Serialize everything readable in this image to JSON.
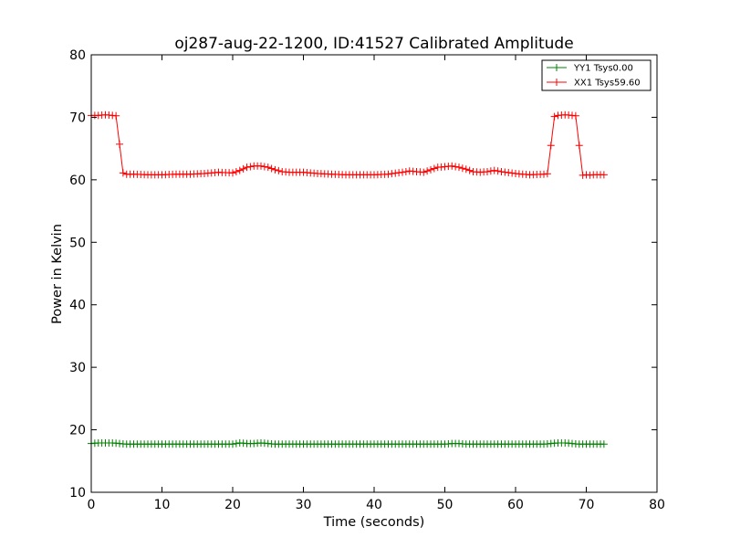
{
  "chart_data": {
    "type": "line",
    "title": "oj287-aug-22-1200, ID:41527 Calibrated Amplitude",
    "xlabel": "Time (seconds)",
    "ylabel": "Power in Kelvin",
    "xlim": [
      0,
      80
    ],
    "ylim": [
      10,
      80
    ],
    "x_ticks": [
      "0",
      "10",
      "20",
      "30",
      "40",
      "50",
      "60",
      "70",
      "80"
    ],
    "y_ticks": [
      "10",
      "20",
      "30",
      "40",
      "50",
      "60",
      "70",
      "80"
    ],
    "grid": false,
    "legend_position": "top-right",
    "marker": "+",
    "sample_interval": 0.5,
    "series": [
      {
        "name": "YY1 Tsys0.00",
        "color": "#008000",
        "x": [
          0,
          1,
          2,
          3,
          4,
          5,
          6,
          8,
          10,
          12,
          14,
          16,
          18,
          20,
          21,
          22,
          23,
          24,
          25,
          26,
          28,
          30,
          32,
          34,
          36,
          38,
          40,
          42,
          44,
          46,
          48,
          50,
          51,
          52,
          53,
          54,
          56,
          58,
          60,
          62,
          64,
          65,
          66,
          67,
          68,
          69,
          70,
          71,
          72,
          72.5
        ],
        "y": [
          17.8,
          17.9,
          17.9,
          17.9,
          17.8,
          17.7,
          17.7,
          17.7,
          17.7,
          17.7,
          17.7,
          17.7,
          17.7,
          17.7,
          17.9,
          17.8,
          17.8,
          17.9,
          17.8,
          17.7,
          17.7,
          17.7,
          17.7,
          17.7,
          17.7,
          17.7,
          17.7,
          17.7,
          17.7,
          17.7,
          17.7,
          17.7,
          17.8,
          17.8,
          17.7,
          17.7,
          17.7,
          17.7,
          17.7,
          17.7,
          17.7,
          17.8,
          17.9,
          17.9,
          17.8,
          17.7,
          17.7,
          17.7,
          17.7,
          17.7
        ]
      },
      {
        "name": "XX1 Tsys59.60",
        "color": "#ff0000",
        "x": [
          0,
          1,
          2,
          3,
          3.8,
          4.2,
          5,
          6,
          8,
          10,
          12,
          14,
          16,
          18,
          20,
          21,
          22,
          23,
          24,
          25,
          26,
          27,
          28,
          30,
          32,
          34,
          36,
          38,
          40,
          42,
          44,
          45,
          46,
          47,
          48,
          49,
          50,
          51,
          52,
          53,
          54,
          55,
          56,
          57,
          58,
          60,
          62,
          64,
          64.8,
          65.2,
          66,
          67,
          68,
          68.8,
          69.2,
          69.6,
          70,
          70.2,
          70.4,
          70.6,
          71,
          72,
          72.5
        ],
        "y": [
          70.3,
          70.3,
          70.4,
          70.3,
          70.2,
          61.2,
          60.9,
          60.9,
          60.8,
          60.8,
          60.9,
          60.9,
          61.0,
          61.2,
          61.1,
          61.5,
          62.0,
          62.2,
          62.2,
          62.0,
          61.6,
          61.3,
          61.2,
          61.2,
          61.0,
          60.9,
          60.8,
          60.8,
          60.8,
          60.9,
          61.2,
          61.4,
          61.3,
          61.2,
          61.6,
          62.0,
          62.1,
          62.2,
          62.0,
          61.7,
          61.3,
          61.2,
          61.3,
          61.5,
          61.3,
          61.0,
          60.8,
          60.9,
          61.0,
          70.0,
          70.3,
          70.4,
          70.3,
          70.2,
          60.8,
          60.7,
          60.8,
          64.2,
          60.8,
          60.7,
          60.8,
          60.8,
          60.8
        ]
      }
    ]
  }
}
